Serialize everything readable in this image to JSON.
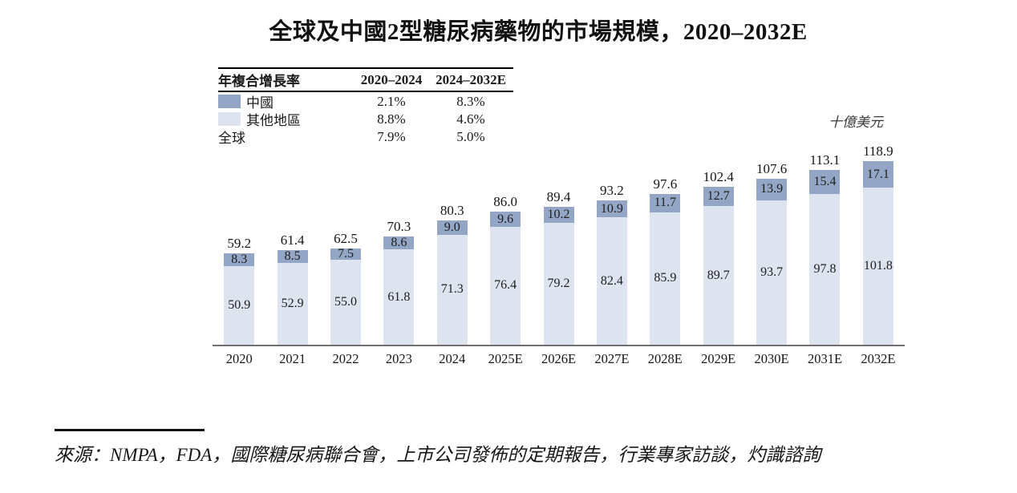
{
  "title": "全球及中國2型糖尿病藥物的市場規模，2020–2032E",
  "unit_label": "十億美元",
  "colors": {
    "china": "#93a6c5",
    "others": "#dde3ef",
    "axis": "#6f6f6f"
  },
  "cagr_table": {
    "header": {
      "label": "年複合增長率",
      "col1": "2020–2024",
      "col2": "2024–2032E"
    },
    "rows": [
      {
        "label": "中國",
        "swatch": "china",
        "col1": "2.1%",
        "col2": "8.3%"
      },
      {
        "label": "其他地區",
        "swatch": "others",
        "col1": "8.8%",
        "col2": "4.6%"
      },
      {
        "label": "全球",
        "swatch": null,
        "col1": "7.9%",
        "col2": "5.0%"
      }
    ]
  },
  "chart_data": {
    "type": "bar",
    "stacked": true,
    "title": "全球及中國2型糖尿病藥物的市場規模，2020–2032E",
    "ylabel": "十億美元",
    "grid": false,
    "legend_position": "top-left",
    "categories": [
      "2020",
      "2021",
      "2022",
      "2023",
      "2024",
      "2025E",
      "2026E",
      "2027E",
      "2028E",
      "2029E",
      "2030E",
      "2031E",
      "2032E"
    ],
    "series": [
      {
        "name": "中國",
        "values": [
          8.3,
          8.5,
          7.5,
          8.6,
          9.0,
          9.6,
          10.2,
          10.9,
          11.7,
          12.7,
          13.9,
          15.4,
          17.1
        ]
      },
      {
        "name": "其他地區",
        "values": [
          50.9,
          52.9,
          55.0,
          61.8,
          71.3,
          76.4,
          79.2,
          82.4,
          85.9,
          89.7,
          93.7,
          97.8,
          101.8
        ]
      }
    ],
    "totals": [
      59.2,
      61.4,
      62.5,
      70.3,
      80.3,
      86.0,
      89.4,
      93.2,
      97.6,
      102.4,
      107.6,
      113.1,
      118.9
    ],
    "ylim": [
      0,
      125
    ]
  },
  "source": "來源：NMPA，FDA，國際糖尿病聯合會，上市公司發佈的定期報告，行業專家訪談，灼識諮詢"
}
